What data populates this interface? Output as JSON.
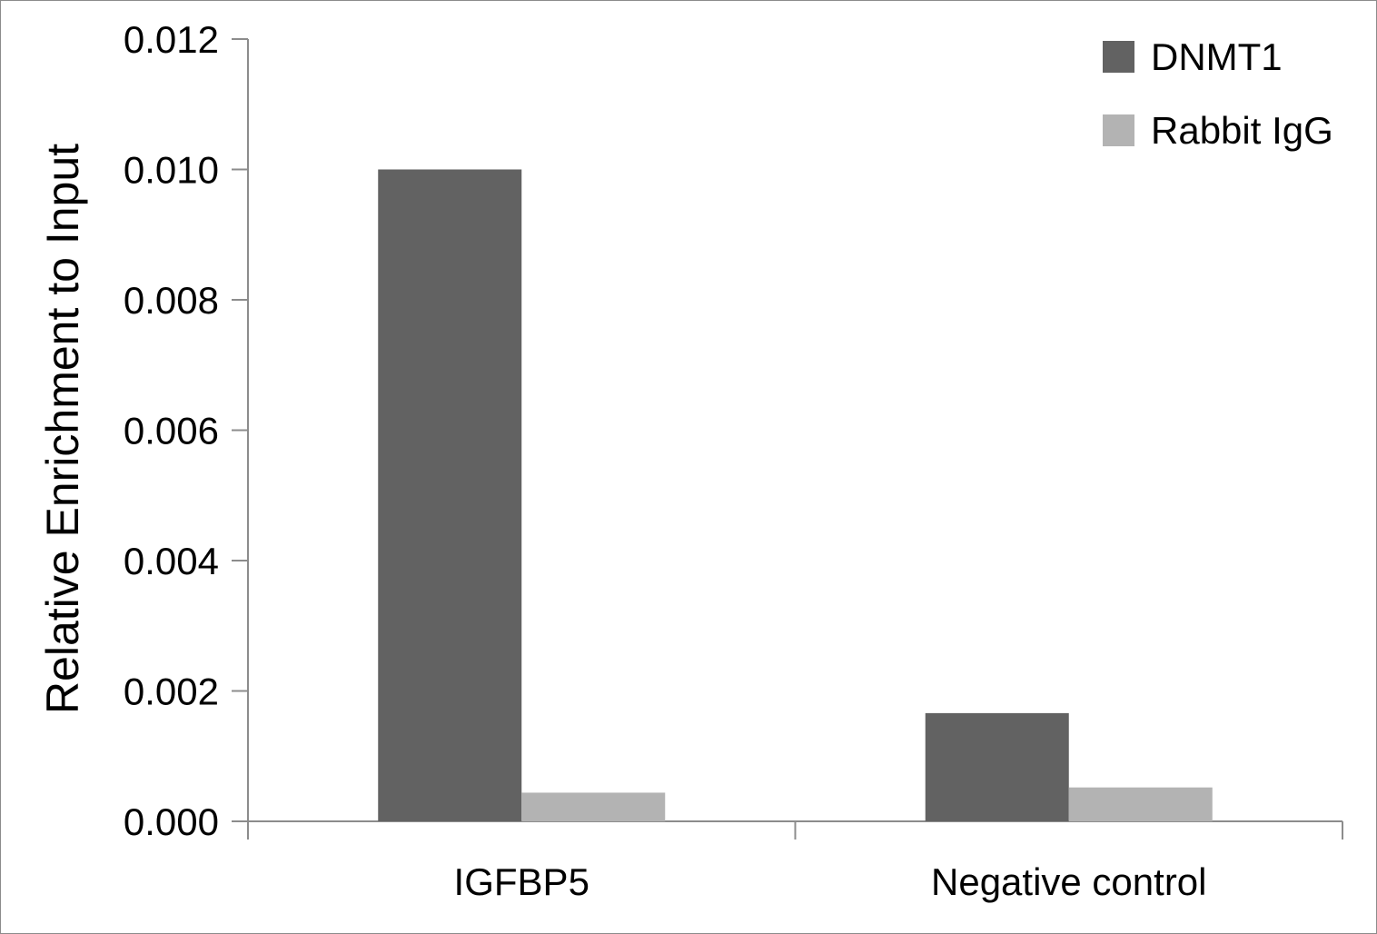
{
  "chart_data": {
    "type": "bar",
    "categories": [
      "IGFBP5",
      "Negative control"
    ],
    "series": [
      {
        "name": "DNMT1",
        "values": [
          0.01,
          0.00166
        ],
        "color": "#626262"
      },
      {
        "name": "Rabbit IgG",
        "values": [
          0.00044,
          0.00052
        ],
        "color": "#b3b3b3"
      }
    ],
    "ylabel": "Relative Enrichment to Input",
    "ylim": [
      0,
      0.012
    ],
    "yticks": [
      "0.000",
      "0.002",
      "0.004",
      "0.006",
      "0.008",
      "0.010",
      "0.012"
    ],
    "ytick_values": [
      0,
      0.002,
      0.004,
      0.006,
      0.008,
      0.01,
      0.012
    ],
    "grid": false,
    "legend_position": "top-right"
  }
}
